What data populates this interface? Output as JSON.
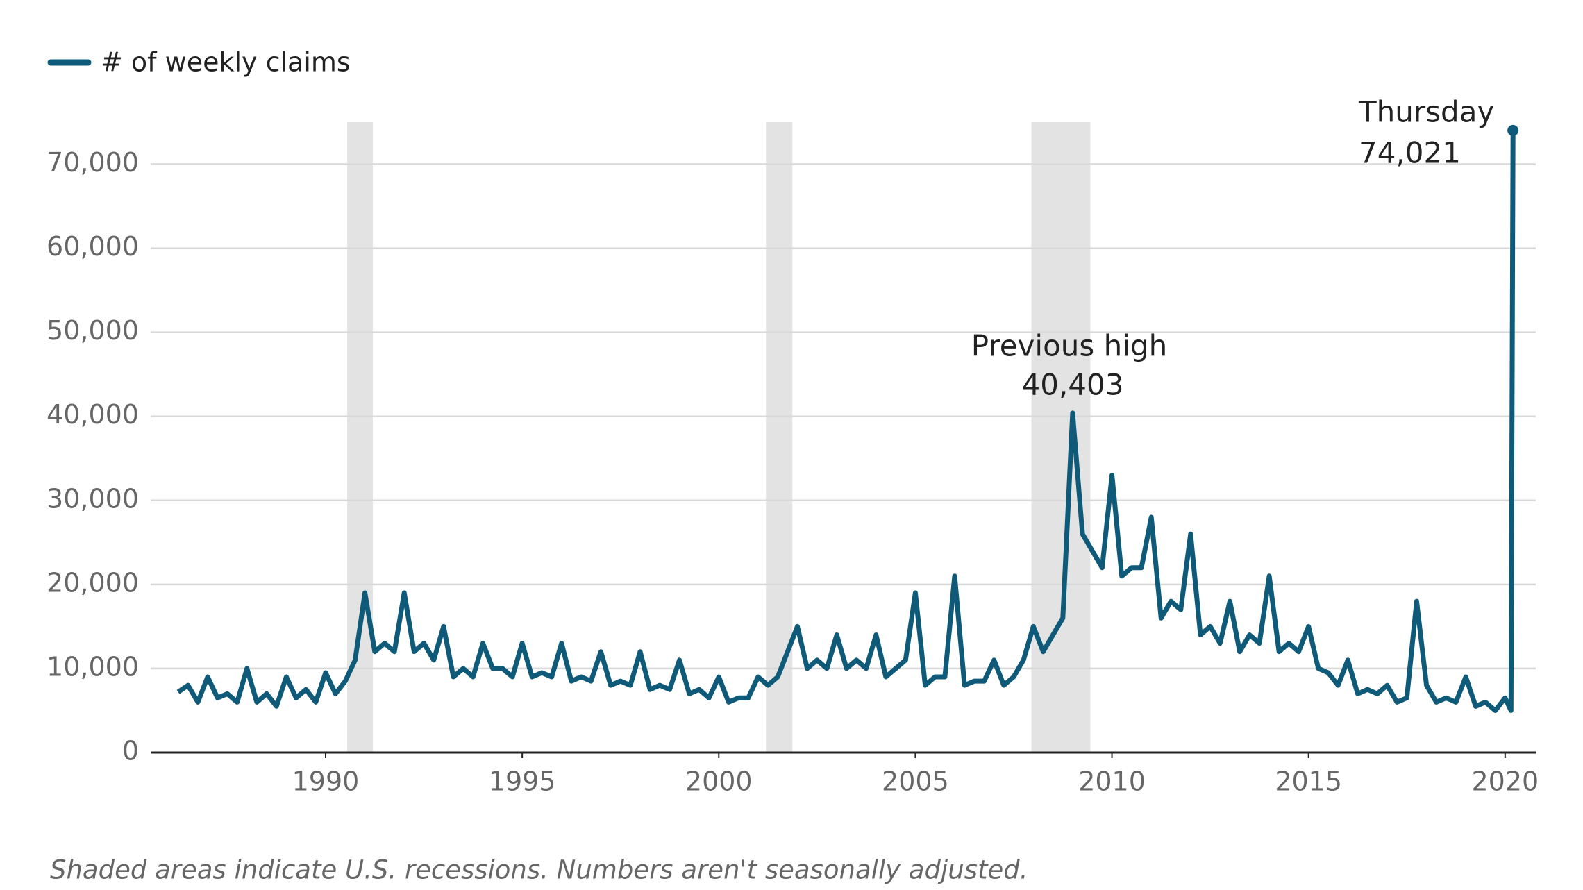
{
  "chart_data": {
    "type": "line",
    "legend": "top-left",
    "grid": true,
    "footnote": "Shaded areas indicate U.S. recessions. Numbers aren't seasonally adjusted.",
    "recessions": [
      [
        1990.55,
        1991.2
      ],
      [
        2001.2,
        2001.87
      ],
      [
        2007.95,
        2009.45
      ]
    ],
    "recession_color": "#e3e3e3",
    "annotations": [
      {
        "lines": [
          "Previous high",
          "40,403"
        ]
      },
      {
        "lines": [
          "Thursday",
          "74,021"
        ]
      }
    ],
    "xlim": [
      1985.55,
      2020.78
    ],
    "xticks": [
      1990,
      1995,
      2000,
      2005,
      2010,
      2015,
      2020
    ],
    "ylim": [
      0,
      75000
    ],
    "yticks": [
      0,
      {
        "value": 10000,
        "label": "10,000"
      },
      {
        "value": 20000,
        "label": "20,000"
      },
      {
        "value": 30000,
        "label": "30,000"
      },
      {
        "value": 40000,
        "label": "40,000"
      },
      {
        "value": 50000,
        "label": "50,000"
      },
      {
        "value": 60000,
        "label": "60,000"
      },
      {
        "value": 70000,
        "label": "70,000"
      }
    ],
    "x": [
      1986.25,
      1986.5,
      1986.75,
      1987,
      1987.25,
      1987.5,
      1987.75,
      1988,
      1988.25,
      1988.5,
      1988.75,
      1989,
      1989.25,
      1989.5,
      1989.75,
      1990,
      1990.25,
      1990.5,
      1990.75,
      1991,
      1991.25,
      1991.5,
      1991.75,
      1992,
      1992.25,
      1992.5,
      1992.75,
      1993,
      1993.25,
      1993.5,
      1993.75,
      1994,
      1994.25,
      1994.5,
      1994.75,
      1995,
      1995.25,
      1995.5,
      1995.75,
      1996,
      1996.25,
      1996.5,
      1996.75,
      1997,
      1997.25,
      1997.5,
      1997.75,
      1998,
      1998.25,
      1998.5,
      1998.75,
      1999,
      1999.25,
      1999.5,
      1999.75,
      2000,
      2000.25,
      2000.5,
      2000.75,
      2001,
      2001.25,
      2001.5,
      2001.75,
      2002,
      2002.25,
      2002.5,
      2002.75,
      2003,
      2003.25,
      2003.5,
      2003.75,
      2004,
      2004.25,
      2004.5,
      2004.75,
      2005,
      2005.25,
      2005.5,
      2005.75,
      2006,
      2006.25,
      2006.5,
      2006.75,
      2007,
      2007.25,
      2007.5,
      2007.75,
      2008,
      2008.25,
      2008.5,
      2008.75,
      2009,
      2009.25,
      2009.5,
      2009.75,
      2010,
      2010.25,
      2010.5,
      2010.75,
      2011,
      2011.25,
      2011.5,
      2011.75,
      2012,
      2012.25,
      2012.5,
      2012.75,
      2013,
      2013.25,
      2013.5,
      2013.75,
      2014,
      2014.25,
      2014.5,
      2014.75,
      2015,
      2015.25,
      2015.5,
      2015.75,
      2016,
      2016.25,
      2016.5,
      2016.75,
      2017,
      2017.25,
      2017.5,
      2017.75,
      2018,
      2018.25,
      2018.5,
      2018.75,
      2019,
      2019.25,
      2019.5,
      2019.75,
      2020,
      2020.15,
      2020.2
    ],
    "series": [
      {
        "name": "# of weekly claims",
        "color": "#0e5a78",
        "values": [
          7200,
          8000,
          6000,
          9000,
          6500,
          7000,
          6000,
          10000,
          6000,
          7000,
          5500,
          9000,
          6500,
          7500,
          6000,
          9500,
          7000,
          8500,
          11000,
          19000,
          12000,
          13000,
          12000,
          19000,
          12000,
          13000,
          11000,
          15000,
          9000,
          10000,
          9000,
          13000,
          10000,
          10000,
          9000,
          13000,
          9000,
          9500,
          9000,
          13000,
          8500,
          9000,
          8500,
          12000,
          8000,
          8500,
          8000,
          12000,
          7500,
          8000,
          7500,
          11000,
          7000,
          7500,
          6500,
          9000,
          6000,
          6500,
          6500,
          9000,
          8000,
          9000,
          12000,
          15000,
          10000,
          11000,
          10000,
          14000,
          10000,
          11000,
          10000,
          14000,
          9000,
          10000,
          11000,
          19000,
          8000,
          9000,
          9000,
          21000,
          8000,
          8500,
          8500,
          11000,
          8000,
          9000,
          11000,
          15000,
          12000,
          14000,
          16000,
          40403,
          26000,
          24000,
          22000,
          33000,
          21000,
          22000,
          22000,
          28000,
          16000,
          18000,
          17000,
          26000,
          14000,
          15000,
          13000,
          18000,
          12000,
          14000,
          13000,
          21000,
          12000,
          13000,
          12000,
          15000,
          10000,
          9500,
          8000,
          11000,
          7000,
          7500,
          7000,
          8000,
          6000,
          6500,
          18000,
          8000,
          6000,
          6500,
          6000,
          9000,
          5500,
          6000,
          5000,
          6500,
          5000,
          74021
        ]
      }
    ]
  }
}
